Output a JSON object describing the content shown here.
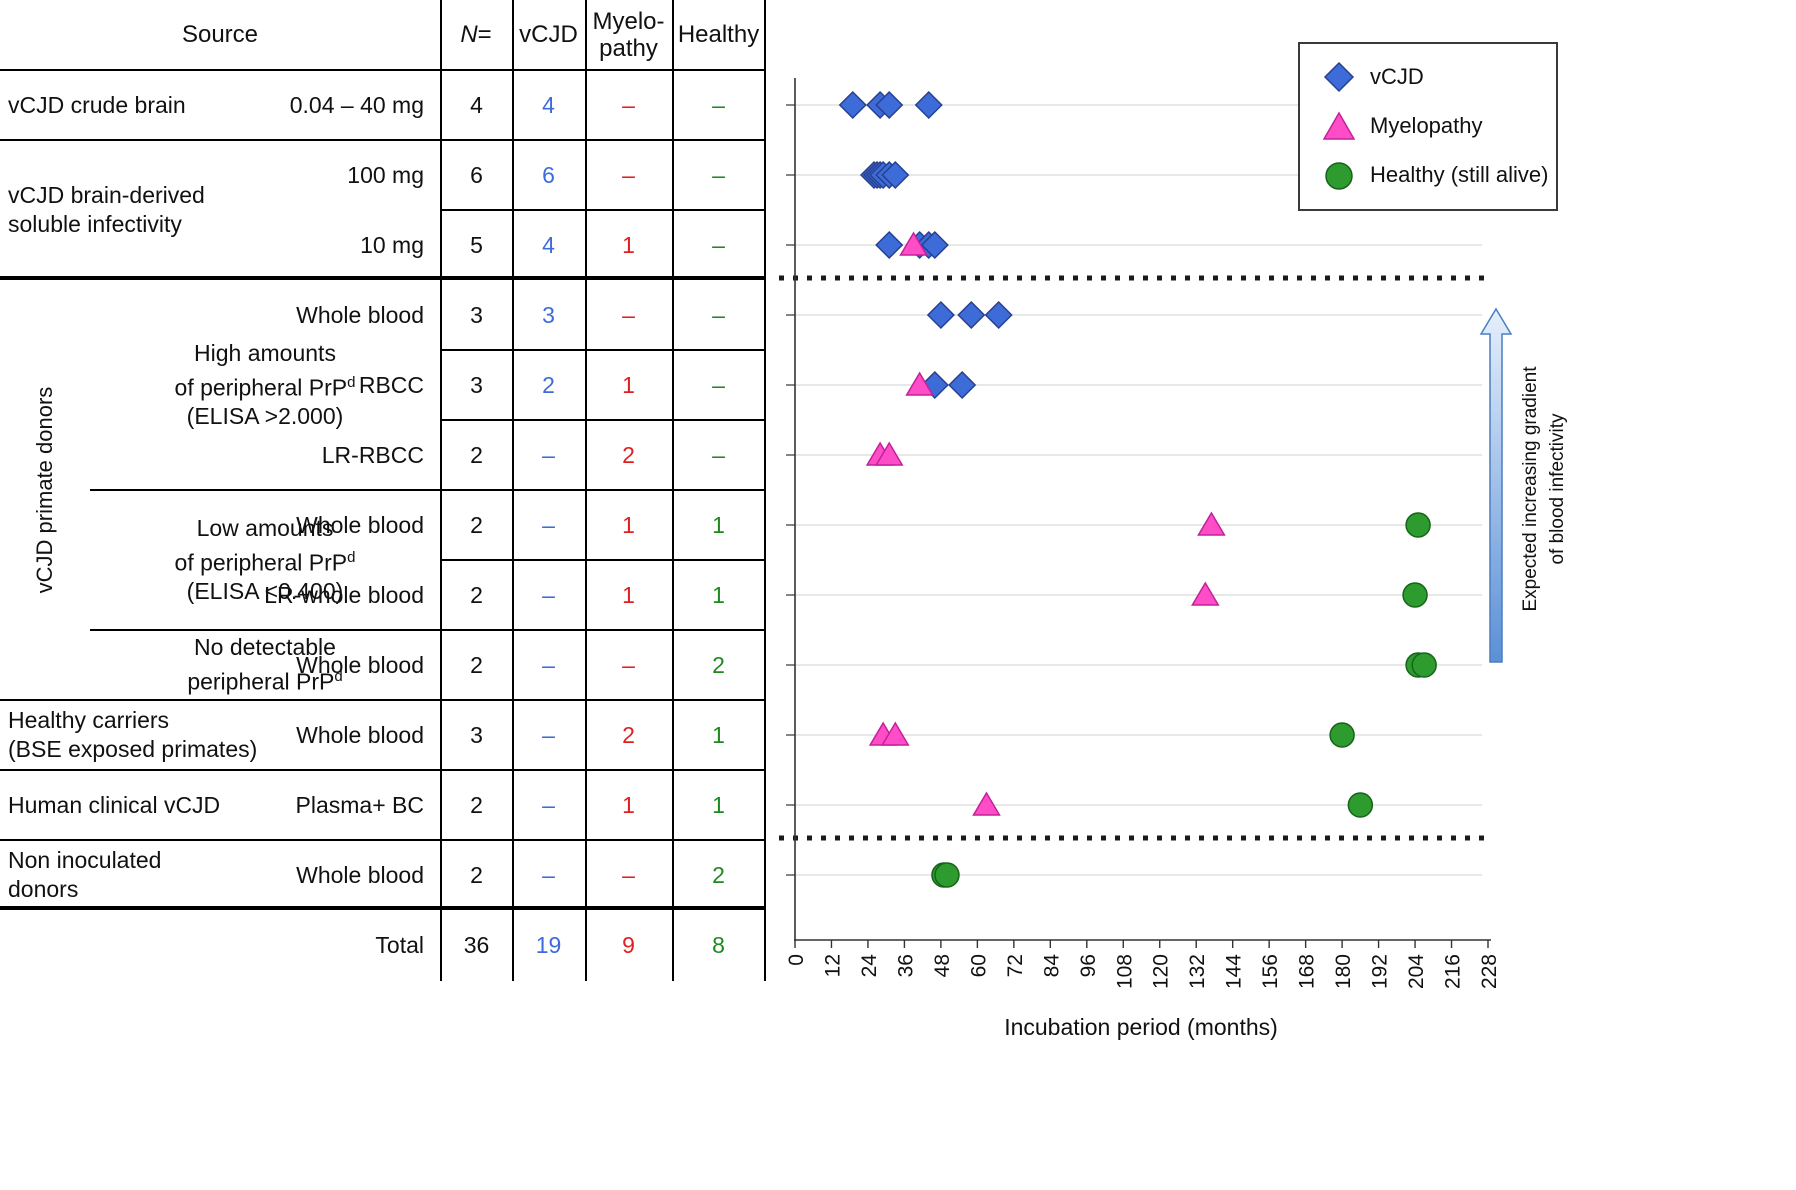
{
  "colors": {
    "vcjd": "#3D6CD9",
    "vcjd_stroke": "#27408F",
    "myelopathy": "#FF4DC8",
    "myelopathy_stroke": "#C4209A",
    "healthy": "#2E9B2E",
    "healthy_stroke": "#17641A",
    "grid": "#D9D9D9",
    "table_blue": "#3D6CD9",
    "table_red": "#E02020",
    "table_green": "#1E8A1E"
  },
  "table": {
    "headers": {
      "source": "Source",
      "n_italic": "N",
      "n_rest": " =",
      "vcjd": "vCJD",
      "myelopathy_l1": "Myelo-",
      "myelopathy_l2": "pathy",
      "healthy": "Healthy"
    },
    "groups": {
      "crude_brain": "vCJD crude brain",
      "brain_derived_l1": "vCJD brain-derived",
      "brain_derived_l2": "soluble infectivity",
      "side_label": "vCJD primate donors",
      "high_l1": "High amounts",
      "high_l2_pre": "of peripheral PrP",
      "high_l2_sup": "d",
      "high_l3": "(ELISA >2.000)",
      "low_l1": "Low amounts",
      "low_l2_pre": "of peripheral PrP",
      "low_l2_sup": "d",
      "low_l3": "(ELISA <0.400)",
      "nodetect_l1": "No detectable",
      "nodetect_l2_pre": "peripheral PrP",
      "nodetect_l2_sup": "d",
      "healthy_carriers_l1": "Healthy carriers",
      "healthy_carriers_l2": "(BSE exposed primates)",
      "human_clinical": "Human clinical vCJD",
      "non_inoculated_l1": "Non inoculated",
      "non_inoculated_l2": "donors"
    },
    "rows": [
      {
        "material": "0.04 – 40 mg",
        "n": "4",
        "vcjd": "4",
        "myelopathy": "–",
        "healthy": "–"
      },
      {
        "material": "100 mg",
        "n": "6",
        "vcjd": "6",
        "myelopathy": "–",
        "healthy": "–"
      },
      {
        "material": "10 mg",
        "n": "5",
        "vcjd": "4",
        "myelopathy": "1",
        "healthy": "–"
      },
      {
        "material": "Whole blood",
        "n": "3",
        "vcjd": "3",
        "myelopathy": "–",
        "healthy": "–"
      },
      {
        "material": "RBCC",
        "n": "3",
        "vcjd": "2",
        "myelopathy": "1",
        "healthy": "–"
      },
      {
        "material": "LR-RBCC",
        "n": "2",
        "vcjd": "–",
        "myelopathy": "2",
        "healthy": "–"
      },
      {
        "material": "Whole blood",
        "n": "2",
        "vcjd": "–",
        "myelopathy": "1",
        "healthy": "1"
      },
      {
        "material": "LR-whole blood",
        "n": "2",
        "vcjd": "–",
        "myelopathy": "1",
        "healthy": "1"
      },
      {
        "material": "Whole blood",
        "n": "2",
        "vcjd": "–",
        "myelopathy": "–",
        "healthy": "2"
      },
      {
        "material": "Whole blood",
        "n": "3",
        "vcjd": "–",
        "myelopathy": "2",
        "healthy": "1"
      },
      {
        "material": "Plasma+ BC",
        "n": "2",
        "vcjd": "–",
        "myelopathy": "1",
        "healthy": "1"
      },
      {
        "material": "Whole blood",
        "n": "2",
        "vcjd": "–",
        "myelopathy": "–",
        "healthy": "2"
      }
    ],
    "total": {
      "label": "Total",
      "n": "36",
      "vcjd": "19",
      "myelopathy": "9",
      "healthy": "8"
    }
  },
  "chart_data": {
    "type": "scatter",
    "xlabel": "Incubation period (months)",
    "xlim": [
      0,
      228
    ],
    "x_tick_step": 12,
    "x_ticks": [
      0,
      12,
      24,
      36,
      48,
      60,
      72,
      84,
      96,
      108,
      120,
      132,
      144,
      156,
      168,
      180,
      192,
      204,
      216,
      228
    ],
    "grid": "horizontal category gridlines",
    "legend_position": "top-right",
    "legend": [
      {
        "label": "vCJD",
        "marker": "diamond"
      },
      {
        "label": "Myelopathy",
        "marker": "triangle"
      },
      {
        "label": "Healthy (still alive)",
        "marker": "circle"
      }
    ],
    "gradient_arrow_label_l1": "Expected increasing gradient",
    "gradient_arrow_label_l2": "of blood infectivity",
    "separators_after_row_index": [
      2,
      10
    ],
    "rows": [
      {
        "category": "vCJD crude brain 0.04–40 mg",
        "vcjd": [
          19,
          28,
          31,
          44
        ],
        "myelopathy": [],
        "healthy": []
      },
      {
        "category": "vCJD brain-derived soluble infectivity 100 mg",
        "vcjd": [
          26,
          27,
          28,
          29,
          31,
          33
        ],
        "myelopathy": [],
        "healthy": []
      },
      {
        "category": "vCJD brain-derived soluble infectivity 10 mg",
        "vcjd": [
          31,
          41,
          44,
          46
        ],
        "myelopathy": [
          39
        ],
        "healthy": []
      },
      {
        "category": "High PrPd whole blood",
        "vcjd": [
          48,
          58,
          67
        ],
        "myelopathy": [],
        "healthy": []
      },
      {
        "category": "High PrPd RBCC",
        "vcjd": [
          46,
          55
        ],
        "myelopathy": [
          41
        ],
        "healthy": []
      },
      {
        "category": "High PrPd LR-RBCC",
        "vcjd": [],
        "myelopathy": [
          28,
          31
        ],
        "healthy": []
      },
      {
        "category": "Low PrPd whole blood",
        "vcjd": [],
        "myelopathy": [
          137
        ],
        "healthy": [
          205
        ]
      },
      {
        "category": "Low PrPd LR-whole blood",
        "vcjd": [],
        "myelopathy": [
          135
        ],
        "healthy": [
          204
        ]
      },
      {
        "category": "No detectable PrPd whole blood",
        "vcjd": [],
        "myelopathy": [],
        "healthy": [
          205,
          207
        ]
      },
      {
        "category": "Healthy carriers whole blood",
        "vcjd": [],
        "myelopathy": [
          29,
          33
        ],
        "healthy": [
          180
        ]
      },
      {
        "category": "Human clinical vCJD Plasma+ BC",
        "vcjd": [],
        "myelopathy": [
          63
        ],
        "healthy": [
          186
        ]
      },
      {
        "category": "Non inoculated donors whole blood",
        "vcjd": [],
        "myelopathy": [],
        "healthy": [
          49,
          50
        ]
      }
    ]
  }
}
